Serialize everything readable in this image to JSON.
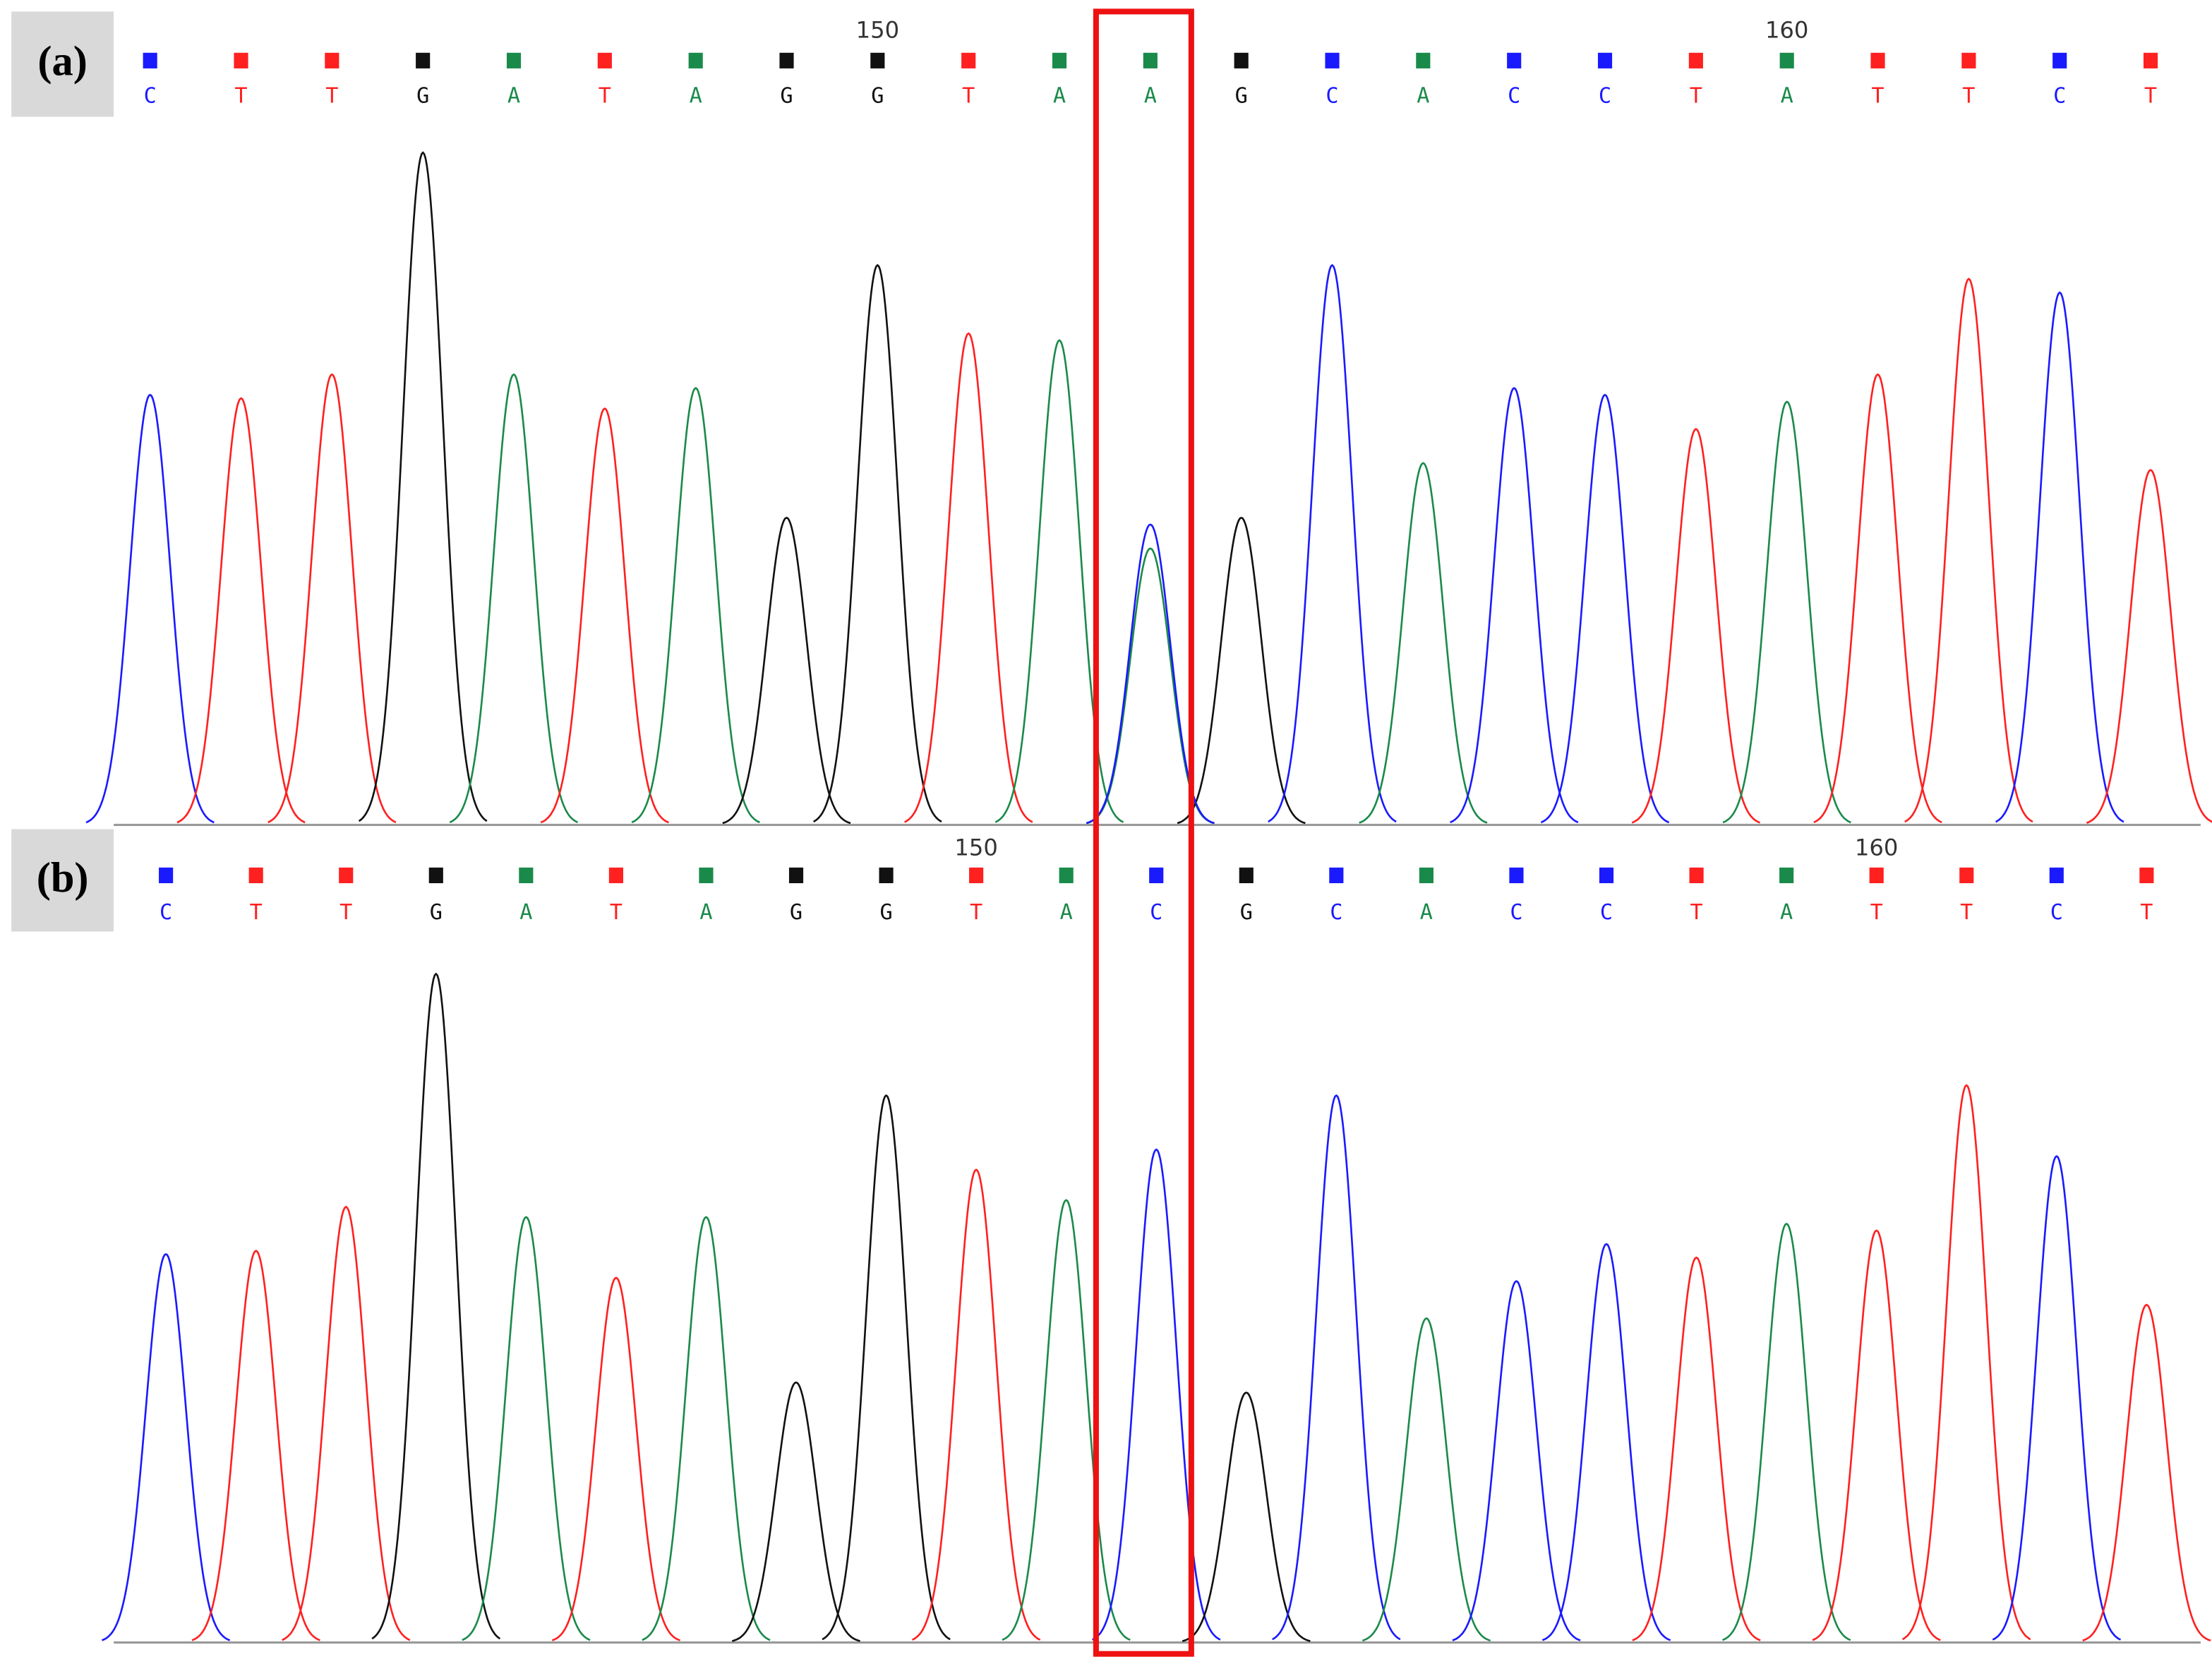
{
  "chart_data": [
    {
      "type": "chromatogram",
      "label": "(a)",
      "x": [
        142,
        143,
        144,
        145,
        146,
        147,
        148,
        149,
        150,
        151,
        152,
        153,
        154,
        155,
        156,
        157,
        158,
        159,
        160,
        161,
        162,
        163,
        164
      ],
      "bases": [
        "C",
        "T",
        "T",
        "G",
        "A",
        "T",
        "A",
        "G",
        "G",
        "T",
        "A",
        "A",
        "G",
        "C",
        "A",
        "C",
        "C",
        "T",
        "A",
        "T",
        "T",
        "C",
        "T"
      ],
      "heights": [
        63,
        62.5,
        66,
        98.5,
        66,
        61,
        64,
        45,
        82,
        72,
        71,
        40.5,
        45,
        82,
        53,
        64,
        63,
        58,
        62,
        66,
        80,
        78,
        52
      ],
      "secondary_peaks": [
        {
          "x": 153,
          "base": "C",
          "height": 44
        }
      ],
      "xlim": [
        141.6,
        164.55
      ],
      "ylim": [
        0,
        100
      ],
      "xticks": [
        150,
        160
      ],
      "colors": {
        "A": "#1a8a4a",
        "C": "#1a1aff",
        "G": "#111111",
        "T": "#ff2020"
      }
    },
    {
      "type": "chromatogram",
      "label": "(b)",
      "x": [
        141,
        142,
        143,
        144,
        145,
        146,
        147,
        148,
        149,
        150,
        151,
        152,
        153,
        154,
        155,
        156,
        157,
        158,
        159,
        160,
        161,
        162,
        163
      ],
      "bases": [
        "C",
        "T",
        "T",
        "G",
        "A",
        "T",
        "A",
        "G",
        "G",
        "T",
        "A",
        "C",
        "G",
        "C",
        "A",
        "C",
        "C",
        "T",
        "A",
        "T",
        "T",
        "C",
        "T"
      ],
      "heights": [
        57.5,
        58,
        64.5,
        99,
        63,
        54,
        63,
        38.5,
        81,
        70,
        65.5,
        73,
        37,
        81,
        48,
        53.5,
        59,
        57,
        62,
        61,
        82.5,
        72,
        50
      ],
      "secondary_peaks": [],
      "xlim": [
        140.42,
        163.6
      ],
      "ylim": [
        0,
        100
      ],
      "xticks": [
        150,
        160
      ],
      "colors": {
        "A": "#1a8a4a",
        "C": "#1a1aff",
        "G": "#111111",
        "T": "#ff2020"
      }
    }
  ]
}
